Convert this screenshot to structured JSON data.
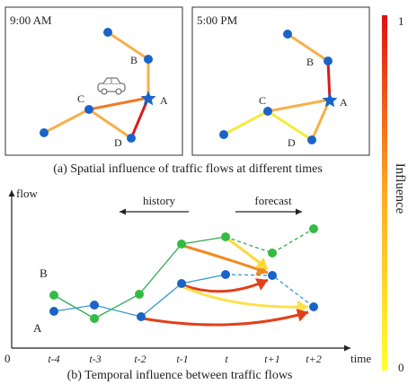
{
  "top": {
    "panel_left": {
      "time": "9:00 AM",
      "node_labels": {
        "A": "A",
        "B": "B",
        "C": "C",
        "D": "D"
      }
    },
    "panel_right": {
      "time": "5:00 PM",
      "node_labels": {
        "A": "A",
        "B": "B",
        "C": "C",
        "D": "D"
      }
    },
    "caption": "(a) Spatial influence of traffic flows  at different times"
  },
  "bottom": {
    "y_axis_label": "flow",
    "x_axis_label": "time",
    "origin_label": "0",
    "history_label": "history",
    "forecast_label": "forecast",
    "series_label_B": "B",
    "series_label_A": "A",
    "ticks": [
      "t-4",
      "t-3",
      "t-2",
      "t-1",
      "t",
      "t+1",
      "t+2"
    ],
    "caption": "(b) Temporal influence between traffic flows"
  },
  "colorbar": {
    "title": "Influence",
    "max_label": "1",
    "min_label": "0",
    "color_low": "#ffff33",
    "color_mid": "#ffaa22",
    "color_high": "#dd1111"
  },
  "colors": {
    "node_blue": "#1a64c8",
    "node_green": "#33bb44",
    "series_A_line": "#3399cc",
    "series_B_line": "#33aa55"
  }
}
